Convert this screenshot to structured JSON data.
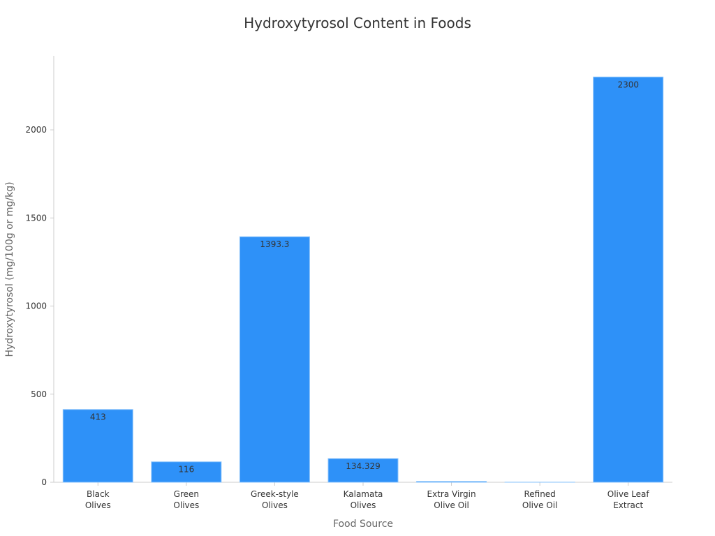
{
  "chart_data": {
    "type": "bar",
    "title": "Hydroxytyrosol Content in Foods",
    "x_label": "Food Source",
    "y_label": "Hydroxytyrosol (mg/100g or mg/kg)",
    "categories": [
      "Black\nOlives",
      "Green\nOlives",
      "Greek-style\nOlives",
      "Kalamata\nOlives",
      "Extra Virgin\nOlive Oil",
      "Refined\nOlive Oil",
      "Olive Leaf\nExtract"
    ],
    "values": [
      413,
      116,
      1393.3,
      134.329,
      5,
      0.5,
      2300
    ],
    "color": "#2e91f8",
    "ylim": [
      0,
      2420
    ],
    "yticks": [
      0,
      500,
      1000,
      1500,
      2000
    ],
    "grid": false
  }
}
